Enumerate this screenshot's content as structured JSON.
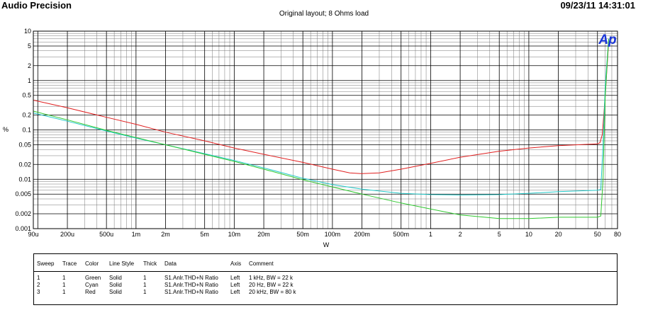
{
  "header": {
    "app_title": "Audio Precision",
    "timestamp": "09/23/11 14:31:01",
    "subtitle": "Original layout; 8 Ohms load"
  },
  "chart_data": {
    "type": "line",
    "title": "Original layout; 8 Ohms load",
    "xlabel": "W",
    "ylabel": "%",
    "xscale": "log",
    "yscale": "log",
    "xlim": [
      9e-05,
      80
    ],
    "ylim": [
      0.001,
      10
    ],
    "grid": true,
    "logo": "Ap",
    "x_ticks": [
      {
        "v": 9e-05,
        "label": "90u"
      },
      {
        "v": 0.0002,
        "label": "200u"
      },
      {
        "v": 0.0005,
        "label": "500u"
      },
      {
        "v": 0.001,
        "label": "1m"
      },
      {
        "v": 0.002,
        "label": "2m"
      },
      {
        "v": 0.005,
        "label": "5m"
      },
      {
        "v": 0.01,
        "label": "10m"
      },
      {
        "v": 0.02,
        "label": "20m"
      },
      {
        "v": 0.05,
        "label": "50m"
      },
      {
        "v": 0.1,
        "label": "100m"
      },
      {
        "v": 0.2,
        "label": "200m"
      },
      {
        "v": 0.5,
        "label": "500m"
      },
      {
        "v": 1,
        "label": "1"
      },
      {
        "v": 2,
        "label": "2"
      },
      {
        "v": 5,
        "label": "5"
      },
      {
        "v": 10,
        "label": "10"
      },
      {
        "v": 20,
        "label": "20"
      },
      {
        "v": 50,
        "label": "50"
      },
      {
        "v": 80,
        "label": "80"
      }
    ],
    "y_ticks": [
      {
        "v": 10,
        "label": "10"
      },
      {
        "v": 5,
        "label": "5"
      },
      {
        "v": 2,
        "label": "2"
      },
      {
        "v": 1,
        "label": "1"
      },
      {
        "v": 0.5,
        "label": "0.5"
      },
      {
        "v": 0.2,
        "label": "0.2"
      },
      {
        "v": 0.1,
        "label": "0.1"
      },
      {
        "v": 0.05,
        "label": "0.05"
      },
      {
        "v": 0.02,
        "label": "0.02"
      },
      {
        "v": 0.01,
        "label": "0.01"
      },
      {
        "v": 0.005,
        "label": "0.005"
      },
      {
        "v": 0.002,
        "label": "0.002"
      },
      {
        "v": 0.001,
        "label": "0.001"
      }
    ],
    "series": [
      {
        "color": "#e02020",
        "x": [
          9e-05,
          0.0002,
          0.0005,
          0.001,
          0.002,
          0.005,
          0.01,
          0.02,
          0.05,
          0.1,
          0.15,
          0.2,
          0.3,
          0.5,
          1,
          2,
          5,
          10,
          20,
          50,
          53,
          56,
          60,
          65
        ],
        "y": [
          0.4,
          0.28,
          0.18,
          0.13,
          0.09,
          0.06,
          0.043,
          0.032,
          0.022,
          0.016,
          0.0135,
          0.013,
          0.0135,
          0.016,
          0.021,
          0.028,
          0.037,
          0.043,
          0.048,
          0.052,
          0.055,
          0.08,
          0.5,
          6
        ]
      },
      {
        "color": "#20c8c8",
        "x": [
          9e-05,
          0.0002,
          0.0005,
          0.001,
          0.002,
          0.005,
          0.01,
          0.02,
          0.05,
          0.1,
          0.2,
          0.5,
          1,
          2,
          5,
          10,
          20,
          50,
          54,
          57,
          60,
          65
        ],
        "y": [
          0.22,
          0.15,
          0.095,
          0.068,
          0.05,
          0.033,
          0.024,
          0.017,
          0.0105,
          0.0078,
          0.0063,
          0.0052,
          0.0049,
          0.0048,
          0.0049,
          0.0052,
          0.0056,
          0.006,
          0.0062,
          0.05,
          0.8,
          7
        ]
      },
      {
        "color": "#30c830",
        "x": [
          9e-05,
          0.0002,
          0.0005,
          0.001,
          0.002,
          0.005,
          0.01,
          0.02,
          0.05,
          0.1,
          0.2,
          0.5,
          1,
          2,
          5,
          10,
          20,
          50,
          54,
          57,
          60,
          65
        ],
        "y": [
          0.24,
          0.16,
          0.098,
          0.07,
          0.05,
          0.032,
          0.023,
          0.016,
          0.0098,
          0.007,
          0.005,
          0.0033,
          0.0025,
          0.0019,
          0.0016,
          0.0016,
          0.0017,
          0.0017,
          0.0018,
          0.01,
          0.5,
          7
        ]
      }
    ]
  },
  "legend_table": {
    "headers": [
      "Sweep",
      "Trace",
      "Color",
      "Line Style",
      "Thick",
      "Data",
      "Axis",
      "Comment"
    ],
    "rows": [
      [
        "1",
        "1",
        "Green",
        "Solid",
        "1",
        "S1.Anlr.THD+N Ratio",
        "Left",
        "1 kHz, BW = 22 k"
      ],
      [
        "2",
        "1",
        "Cyan",
        "Solid",
        "1",
        "S1.Anlr.THD+N Ratio",
        "Left",
        "20 Hz, BW = 22 k"
      ],
      [
        "3",
        "1",
        "Red",
        "Solid",
        "1",
        "S1.Anlr.THD+N Ratio",
        "Left",
        "20 kHz, BW = 80 k"
      ]
    ]
  }
}
